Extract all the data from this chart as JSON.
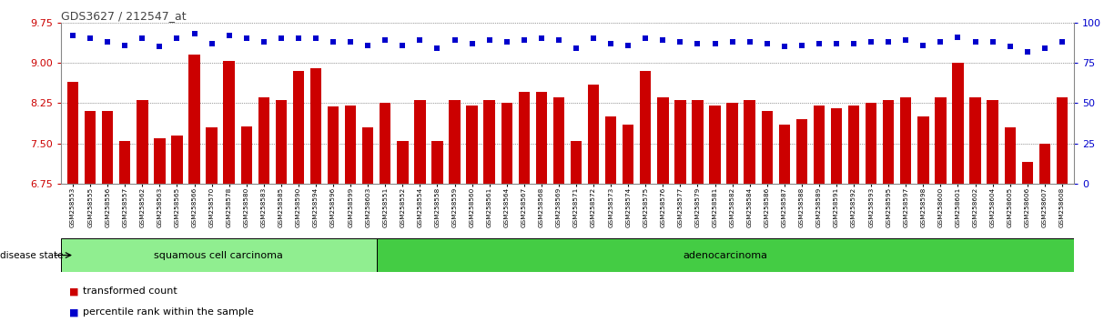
{
  "title": "GDS3627 / 212547_at",
  "sample_ids": [
    "GSM258553",
    "GSM258555",
    "GSM258556",
    "GSM258557",
    "GSM258562",
    "GSM258563",
    "GSM258565",
    "GSM258566",
    "GSM258570",
    "GSM258578",
    "GSM258580",
    "GSM258583",
    "GSM258585",
    "GSM258590",
    "GSM258594",
    "GSM258596",
    "GSM258599",
    "GSM258603",
    "GSM258551",
    "GSM258552",
    "GSM258554",
    "GSM258558",
    "GSM258559",
    "GSM258560",
    "GSM258561",
    "GSM258564",
    "GSM258567",
    "GSM258568",
    "GSM258569",
    "GSM258571",
    "GSM258572",
    "GSM258573",
    "GSM258574",
    "GSM258575",
    "GSM258576",
    "GSM258577",
    "GSM258579",
    "GSM258581",
    "GSM258582",
    "GSM258584",
    "GSM258586",
    "GSM258587",
    "GSM258588",
    "GSM258589",
    "GSM258591",
    "GSM258592",
    "GSM258593",
    "GSM258595",
    "GSM258597",
    "GSM258598",
    "GSM258600",
    "GSM258601",
    "GSM258602",
    "GSM258604",
    "GSM258605",
    "GSM258606",
    "GSM258607",
    "GSM258608"
  ],
  "red_values": [
    8.65,
    8.1,
    8.1,
    7.55,
    8.3,
    7.6,
    7.65,
    9.15,
    7.8,
    9.03,
    7.82,
    8.35,
    8.3,
    8.85,
    8.9,
    8.18,
    8.2,
    7.8,
    8.25,
    7.55,
    8.3,
    7.55,
    8.3,
    8.2,
    8.3,
    8.25,
    8.45,
    8.45,
    8.35,
    7.55,
    8.6,
    8.0,
    7.85,
    8.85,
    8.35,
    8.3,
    8.3,
    8.2,
    8.25,
    8.3,
    8.1,
    7.85,
    7.95,
    8.2,
    8.15,
    8.2,
    8.25,
    8.3,
    8.35,
    8.0,
    8.35,
    9.0,
    8.35,
    8.3,
    7.8,
    7.15,
    7.5,
    8.35
  ],
  "blue_values": [
    92,
    90,
    88,
    86,
    90,
    85,
    90,
    93,
    87,
    92,
    90,
    88,
    90,
    90,
    90,
    88,
    88,
    86,
    89,
    86,
    89,
    84,
    89,
    87,
    89,
    88,
    89,
    90,
    89,
    84,
    90,
    87,
    86,
    90,
    89,
    88,
    87,
    87,
    88,
    88,
    87,
    85,
    86,
    87,
    87,
    87,
    88,
    88,
    89,
    86,
    88,
    91,
    88,
    88,
    85,
    82,
    84,
    88
  ],
  "n_squamous": 18,
  "n_adenocarcinoma": 40,
  "ylim_left": [
    6.75,
    9.75
  ],
  "ylim_right": [
    0,
    100
  ],
  "yticks_left": [
    6.75,
    7.5,
    8.25,
    9.0,
    9.75
  ],
  "yticks_right": [
    0,
    25,
    50,
    75,
    100
  ],
  "bar_color": "#cc0000",
  "square_color": "#0000cc",
  "squamous_color": "#90ee90",
  "adeno_color": "#44cc44",
  "grid_color": "#555555",
  "title_color": "#444444",
  "label_left_color": "#cc0000",
  "label_right_color": "#0000cc"
}
